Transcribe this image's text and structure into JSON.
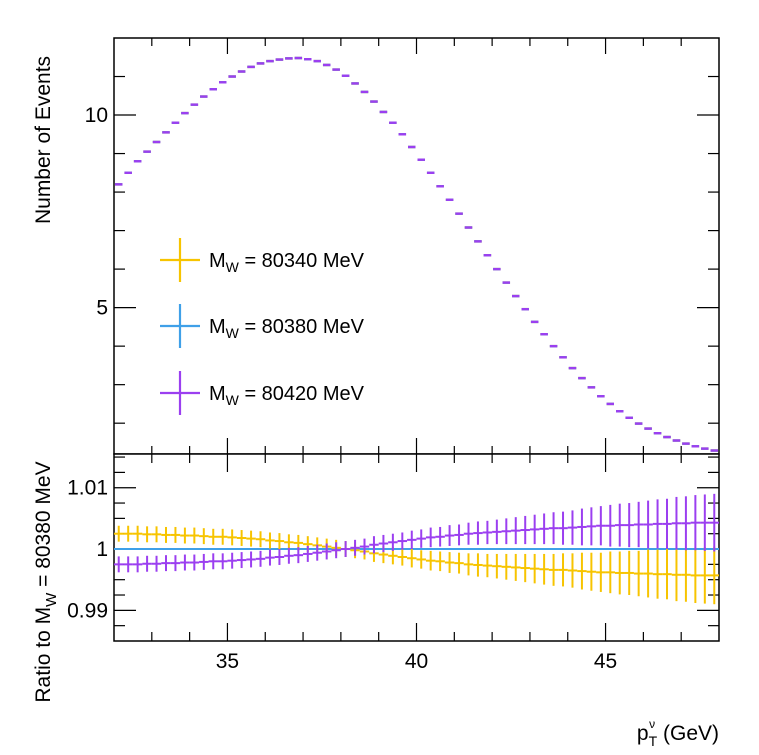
{
  "chart_data": [
    {
      "type": "line",
      "panel": "top",
      "ylabel": "Number of Events",
      "xlim": [
        32,
        48
      ],
      "ylim": [
        1.2,
        12
      ],
      "yticks": [
        5,
        10
      ],
      "bin_width": 0.25,
      "series": [
        {
          "name": "MW = 80340 MeV",
          "legend_main": "M",
          "legend_sub": "W",
          "legend_rest": " = 80340 MeV",
          "color": "#f7c400",
          "x": [
            32.125,
            32.375,
            32.625,
            32.875,
            33.125,
            33.375,
            33.625,
            33.875,
            34.125,
            34.375,
            34.625,
            34.875,
            35.125,
            35.375,
            35.625,
            35.875,
            36.125,
            36.375,
            36.625,
            36.875,
            37.125,
            37.375,
            37.625,
            37.875,
            38.125,
            38.375,
            38.625,
            38.875,
            39.125,
            39.375,
            39.625,
            39.875,
            40.125,
            40.375,
            40.625,
            40.875,
            41.125,
            41.375,
            41.625,
            41.875,
            42.125,
            42.375,
            42.625,
            42.875,
            43.125,
            43.375,
            43.625,
            43.875,
            44.125,
            44.375,
            44.625,
            44.875,
            45.125,
            45.375,
            45.625,
            45.875,
            46.125,
            46.375,
            46.625,
            46.875,
            47.125,
            47.375,
            47.625,
            47.875
          ],
          "y": [
            8.2,
            8.5,
            8.8,
            9.05,
            9.3,
            9.55,
            9.8,
            10.05,
            10.27,
            10.48,
            10.67,
            10.85,
            11.0,
            11.13,
            11.25,
            11.34,
            11.4,
            11.44,
            11.47,
            11.48,
            11.45,
            11.4,
            11.3,
            11.18,
            11.02,
            10.82,
            10.6,
            10.35,
            10.08,
            9.8,
            9.5,
            9.17,
            8.84,
            8.5,
            8.15,
            7.8,
            7.44,
            7.08,
            6.72,
            6.36,
            6.0,
            5.65,
            5.3,
            4.96,
            4.63,
            4.31,
            4.0,
            3.71,
            3.43,
            3.17,
            2.93,
            2.7,
            2.5,
            2.31,
            2.14,
            1.99,
            1.86,
            1.74,
            1.64,
            1.55,
            1.47,
            1.4,
            1.34,
            1.29
          ]
        },
        {
          "name": "MW = 80380 MeV",
          "legend_main": "M",
          "legend_sub": "W",
          "legend_rest": " = 80380 MeV",
          "color": "#3fa0e8",
          "x": [
            32.125,
            32.375,
            32.625,
            32.875,
            33.125,
            33.375,
            33.625,
            33.875,
            34.125,
            34.375,
            34.625,
            34.875,
            35.125,
            35.375,
            35.625,
            35.875,
            36.125,
            36.375,
            36.625,
            36.875,
            37.125,
            37.375,
            37.625,
            37.875,
            38.125,
            38.375,
            38.625,
            38.875,
            39.125,
            39.375,
            39.625,
            39.875,
            40.125,
            40.375,
            40.625,
            40.875,
            41.125,
            41.375,
            41.625,
            41.875,
            42.125,
            42.375,
            42.625,
            42.875,
            43.125,
            43.375,
            43.625,
            43.875,
            44.125,
            44.375,
            44.625,
            44.875,
            45.125,
            45.375,
            45.625,
            45.875,
            46.125,
            46.375,
            46.625,
            46.875,
            47.125,
            47.375,
            47.625,
            47.875
          ],
          "y": [
            8.2,
            8.5,
            8.8,
            9.05,
            9.3,
            9.55,
            9.8,
            10.05,
            10.27,
            10.48,
            10.67,
            10.85,
            11.0,
            11.13,
            11.25,
            11.34,
            11.4,
            11.44,
            11.47,
            11.48,
            11.45,
            11.4,
            11.3,
            11.18,
            11.02,
            10.82,
            10.6,
            10.35,
            10.08,
            9.8,
            9.5,
            9.17,
            8.84,
            8.5,
            8.15,
            7.8,
            7.44,
            7.08,
            6.72,
            6.36,
            6.0,
            5.65,
            5.3,
            4.96,
            4.63,
            4.31,
            4.0,
            3.71,
            3.43,
            3.17,
            2.93,
            2.7,
            2.5,
            2.31,
            2.14,
            1.99,
            1.86,
            1.74,
            1.64,
            1.55,
            1.47,
            1.4,
            1.34,
            1.29
          ]
        },
        {
          "name": "MW = 80420 MeV",
          "legend_main": "M",
          "legend_sub": "W",
          "legend_rest": " = 80420 MeV",
          "color": "#9b3ff0",
          "x": [
            32.125,
            32.375,
            32.625,
            32.875,
            33.125,
            33.375,
            33.625,
            33.875,
            34.125,
            34.375,
            34.625,
            34.875,
            35.125,
            35.375,
            35.625,
            35.875,
            36.125,
            36.375,
            36.625,
            36.875,
            37.125,
            37.375,
            37.625,
            37.875,
            38.125,
            38.375,
            38.625,
            38.875,
            39.125,
            39.375,
            39.625,
            39.875,
            40.125,
            40.375,
            40.625,
            40.875,
            41.125,
            41.375,
            41.625,
            41.875,
            42.125,
            42.375,
            42.625,
            42.875,
            43.125,
            43.375,
            43.625,
            43.875,
            44.125,
            44.375,
            44.625,
            44.875,
            45.125,
            45.375,
            45.625,
            45.875,
            46.125,
            46.375,
            46.625,
            46.875,
            47.125,
            47.375,
            47.625,
            47.875
          ],
          "y": [
            8.2,
            8.5,
            8.8,
            9.05,
            9.3,
            9.55,
            9.8,
            10.05,
            10.27,
            10.48,
            10.67,
            10.85,
            11.0,
            11.13,
            11.25,
            11.34,
            11.4,
            11.44,
            11.47,
            11.48,
            11.45,
            11.4,
            11.3,
            11.18,
            11.02,
            10.82,
            10.6,
            10.35,
            10.08,
            9.8,
            9.5,
            9.17,
            8.84,
            8.5,
            8.15,
            7.8,
            7.44,
            7.08,
            6.72,
            6.36,
            6.0,
            5.65,
            5.3,
            4.96,
            4.63,
            4.31,
            4.0,
            3.71,
            3.43,
            3.17,
            2.93,
            2.7,
            2.5,
            2.31,
            2.14,
            1.99,
            1.86,
            1.74,
            1.64,
            1.55,
            1.47,
            1.4,
            1.34,
            1.29
          ]
        }
      ]
    },
    {
      "type": "line",
      "panel": "ratio",
      "ylabel_main": "Ratio to M",
      "ylabel_sub": "W",
      "ylabel_rest": " = 80380 MeV",
      "xlabel_main": "p",
      "xlabel_sub": "T",
      "xlabel_sup": "ν",
      "xlabel_rest": " (GeV)",
      "xlim": [
        32,
        48
      ],
      "ylim": [
        0.985,
        1.0155
      ],
      "yticks": [
        0.99,
        1,
        1.01
      ],
      "ytick_labels": [
        "0.99",
        "1",
        "1.01"
      ],
      "xticks": [
        35,
        40,
        45
      ],
      "xtick_labels": [
        "35",
        "40",
        "45"
      ],
      "reference_line": 1,
      "reference_color": "#3fa0e8",
      "series": [
        {
          "name": "MW = 80340 MeV / MW = 80380 MeV",
          "color": "#f7c400",
          "x": [
            32.125,
            32.375,
            32.625,
            32.875,
            33.125,
            33.375,
            33.625,
            33.875,
            34.125,
            34.375,
            34.625,
            34.875,
            35.125,
            35.375,
            35.625,
            35.875,
            36.125,
            36.375,
            36.625,
            36.875,
            37.125,
            37.375,
            37.625,
            37.875,
            38.125,
            38.375,
            38.625,
            38.875,
            39.125,
            39.375,
            39.625,
            39.875,
            40.125,
            40.375,
            40.625,
            40.875,
            41.125,
            41.375,
            41.625,
            41.875,
            42.125,
            42.375,
            42.625,
            42.875,
            43.125,
            43.375,
            43.625,
            43.875,
            44.125,
            44.375,
            44.625,
            44.875,
            45.125,
            45.375,
            45.625,
            45.875,
            46.125,
            46.375,
            46.625,
            46.875,
            47.125,
            47.375,
            47.625,
            47.875
          ],
          "y": [
            1.0025,
            1.0025,
            1.0025,
            1.0024,
            1.0024,
            1.0023,
            1.0023,
            1.0022,
            1.0022,
            1.0021,
            1.002,
            1.002,
            1.0019,
            1.0018,
            1.0017,
            1.0016,
            1.0014,
            1.0013,
            1.0011,
            1.001,
            1.0008,
            1.0006,
            1.0004,
            1.0002,
            1.0,
            0.9998,
            0.9996,
            0.9993,
            0.9991,
            0.9989,
            0.9987,
            0.9985,
            0.9983,
            0.9981,
            0.998,
            0.9978,
            0.9977,
            0.9975,
            0.9974,
            0.9973,
            0.9972,
            0.9971,
            0.997,
            0.9969,
            0.9968,
            0.9967,
            0.9966,
            0.9966,
            0.9965,
            0.9964,
            0.9963,
            0.9962,
            0.9962,
            0.9961,
            0.9961,
            0.996,
            0.996,
            0.9959,
            0.9959,
            0.9958,
            0.9958,
            0.9957,
            0.9957,
            0.9957
          ],
          "err": [
            0.0013,
            0.0013,
            0.0013,
            0.0013,
            0.0013,
            0.0013,
            0.0013,
            0.0013,
            0.0013,
            0.0013,
            0.0013,
            0.0013,
            0.0013,
            0.0013,
            0.0013,
            0.0013,
            0.0013,
            0.0013,
            0.0013,
            0.0013,
            0.0013,
            0.0013,
            0.0013,
            0.0013,
            0.0013,
            0.0013,
            0.0013,
            0.0014,
            0.0014,
            0.0014,
            0.0014,
            0.0015,
            0.0015,
            0.0016,
            0.0016,
            0.0017,
            0.0017,
            0.0018,
            0.0019,
            0.0019,
            0.002,
            0.0021,
            0.0022,
            0.0023,
            0.0024,
            0.0025,
            0.0026,
            0.0027,
            0.0028,
            0.003,
            0.0031,
            0.0032,
            0.0034,
            0.0035,
            0.0036,
            0.0037,
            0.0039,
            0.004,
            0.0041,
            0.0043,
            0.0044,
            0.0045,
            0.0046,
            0.0047
          ]
        },
        {
          "name": "MW = 80420 MeV / MW = 80380 MeV",
          "color": "#9b3ff0",
          "x": [
            32.125,
            32.375,
            32.625,
            32.875,
            33.125,
            33.375,
            33.625,
            33.875,
            34.125,
            34.375,
            34.625,
            34.875,
            35.125,
            35.375,
            35.625,
            35.875,
            36.125,
            36.375,
            36.625,
            36.875,
            37.125,
            37.375,
            37.625,
            37.875,
            38.125,
            38.375,
            38.625,
            38.875,
            39.125,
            39.375,
            39.625,
            39.875,
            40.125,
            40.375,
            40.625,
            40.875,
            41.125,
            41.375,
            41.625,
            41.875,
            42.125,
            42.375,
            42.625,
            42.875,
            43.125,
            43.375,
            43.625,
            43.875,
            44.125,
            44.375,
            44.625,
            44.875,
            45.125,
            45.375,
            45.625,
            45.875,
            46.125,
            46.375,
            46.625,
            46.875,
            47.125,
            47.375,
            47.625,
            47.875
          ],
          "y": [
            0.9975,
            0.9975,
            0.9975,
            0.9976,
            0.9976,
            0.9977,
            0.9977,
            0.9978,
            0.9978,
            0.9979,
            0.998,
            0.998,
            0.9981,
            0.9982,
            0.9983,
            0.9984,
            0.9986,
            0.9987,
            0.9989,
            0.999,
            0.9992,
            0.9994,
            0.9996,
            0.9998,
            1.0,
            1.0002,
            1.0004,
            1.0007,
            1.0009,
            1.0011,
            1.0013,
            1.0015,
            1.0017,
            1.0019,
            1.002,
            1.0022,
            1.0023,
            1.0025,
            1.0026,
            1.0027,
            1.0028,
            1.0029,
            1.003,
            1.0031,
            1.0032,
            1.0033,
            1.0034,
            1.0034,
            1.0035,
            1.0036,
            1.0037,
            1.0038,
            1.0038,
            1.0039,
            1.0039,
            1.004,
            1.004,
            1.0041,
            1.0041,
            1.0042,
            1.0042,
            1.0043,
            1.0043,
            1.0043
          ],
          "err": [
            0.0013,
            0.0013,
            0.0013,
            0.0013,
            0.0013,
            0.0013,
            0.0013,
            0.0013,
            0.0013,
            0.0013,
            0.0013,
            0.0013,
            0.0013,
            0.0013,
            0.0013,
            0.0013,
            0.0013,
            0.0013,
            0.0013,
            0.0013,
            0.0013,
            0.0013,
            0.0013,
            0.0013,
            0.0013,
            0.0013,
            0.0013,
            0.0014,
            0.0014,
            0.0014,
            0.0014,
            0.0015,
            0.0015,
            0.0016,
            0.0016,
            0.0017,
            0.0017,
            0.0018,
            0.0019,
            0.0019,
            0.002,
            0.0021,
            0.0022,
            0.0023,
            0.0024,
            0.0025,
            0.0026,
            0.0027,
            0.0028,
            0.003,
            0.0031,
            0.0032,
            0.0034,
            0.0035,
            0.0036,
            0.0037,
            0.0039,
            0.004,
            0.0041,
            0.0043,
            0.0044,
            0.0045,
            0.0046,
            0.0047
          ]
        }
      ]
    }
  ]
}
